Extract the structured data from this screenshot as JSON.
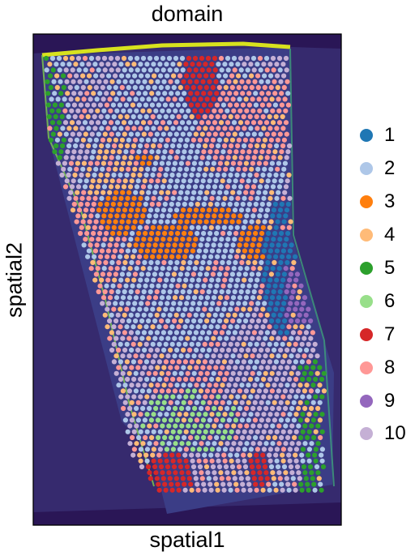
{
  "chart_data": {
    "type": "scatter",
    "title": "domain",
    "xlabel": "spatial1",
    "ylabel": "spatial2",
    "background": "tissue image (viridis-toned)",
    "legend": {
      "placement": "right",
      "entries": [
        {
          "label": "1",
          "color": "#1f77b4"
        },
        {
          "label": "2",
          "color": "#aec7e8"
        },
        {
          "label": "3",
          "color": "#ff7f0e"
        },
        {
          "label": "4",
          "color": "#ffbb78"
        },
        {
          "label": "5",
          "color": "#2ca02c"
        },
        {
          "label": "6",
          "color": "#98df8a"
        },
        {
          "label": "7",
          "color": "#d62728"
        },
        {
          "label": "8",
          "color": "#ff9896"
        },
        {
          "label": "9",
          "color": "#9467bd"
        },
        {
          "label": "10",
          "color": "#c5b0d5"
        }
      ]
    }
  }
}
